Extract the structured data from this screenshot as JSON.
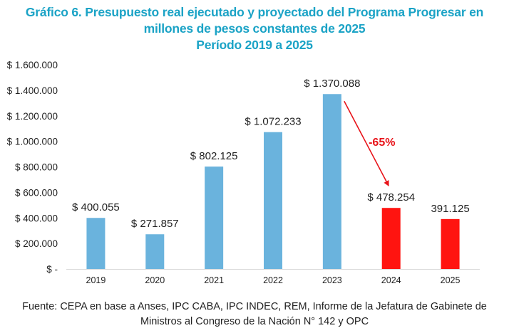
{
  "chart_data": {
    "type": "bar",
    "title": "Gráfico 6. Presupuesto real ejecutado y proyectado del Programa Progresar en millones de pesos constantes de 2025",
    "title_lines": [
      "Gráfico 6. Presupuesto real ejecutado y proyectado del Programa Progresar en",
      "millones de pesos constantes de 2025",
      "Período 2019 a 2025"
    ],
    "subtitle": "Período 2019 a 2025",
    "categories": [
      "2019",
      "2020",
      "2021",
      "2022",
      "2023",
      "2024",
      "2025"
    ],
    "values": [
      400055,
      271857,
      802125,
      1072233,
      1370088,
      478254,
      391125
    ],
    "data_labels": [
      "$ 400.055",
      "$ 271.857",
      "$ 802.125",
      "$ 1.072.233",
      "$ 1.370.088",
      "$ 478.254",
      "391.125"
    ],
    "bar_colors": [
      "#6ab3dd",
      "#6ab3dd",
      "#6ab3dd",
      "#6ab3dd",
      "#6ab3dd",
      "#ff1410",
      "#ff1410"
    ],
    "xlabel": "",
    "ylabel": "",
    "ylim": [
      0,
      1600000
    ],
    "yticks": [
      0,
      200000,
      400000,
      600000,
      800000,
      1000000,
      1200000,
      1400000,
      1600000
    ],
    "ytick_labels": [
      "$ -",
      "$ 200.000",
      "$ 400.000",
      "$ 600.000",
      "$ 800.000",
      "$ 1.000.000",
      "$ 1.200.000",
      "$ 1.400.000",
      "$ 1.600.000"
    ],
    "grid": false,
    "legend": "none",
    "annotations": [
      {
        "text": "-65%",
        "from_category": "2023",
        "to_category": "2024",
        "type": "arrow",
        "color": "#e8141a"
      }
    ],
    "source": "Fuente: CEPA en base a Anses, IPC CABA, IPC INDEC, REM, Informe de la Jefatura de Gabinete de Ministros al Congreso de la Nación N° 142 y OPC",
    "source_lines": [
      "Fuente: CEPA en base a Anses, IPC CABA, IPC INDEC, REM, Informe de la Jefatura de Gabinete de",
      "Ministros al Congreso de la Nación N° 142 y OPC"
    ]
  }
}
